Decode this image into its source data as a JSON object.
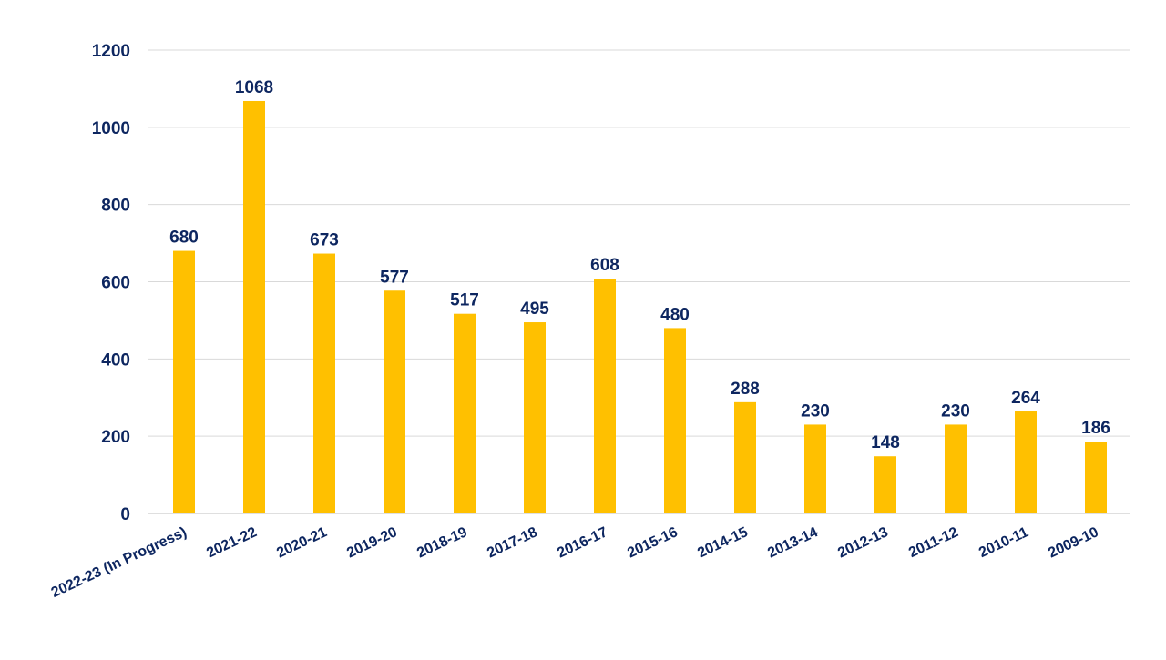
{
  "chart_data": {
    "type": "bar",
    "title": "",
    "xlabel": "",
    "ylabel": "",
    "categories": [
      "2022-23 (In Progress)",
      "2021-22",
      "2020-21",
      "2019-20",
      "2018-19",
      "2017-18",
      "2016-17",
      "2015-16",
      "2014-15",
      "2013-14",
      "2012-13",
      "2011-12",
      "2010-11",
      "2009-10"
    ],
    "values": [
      680,
      1068,
      673,
      577,
      517,
      495,
      608,
      480,
      288,
      230,
      148,
      230,
      264,
      186
    ],
    "ylim": [
      0,
      1200
    ],
    "yticks": [
      "0",
      "200",
      "400",
      "600",
      "800",
      "1000",
      "1200"
    ],
    "grid": true,
    "legend": "none",
    "data_labels": true,
    "colors": {
      "bar": "#FFC000",
      "text": "#0D2660",
      "grid": "#D9D9D9"
    }
  }
}
